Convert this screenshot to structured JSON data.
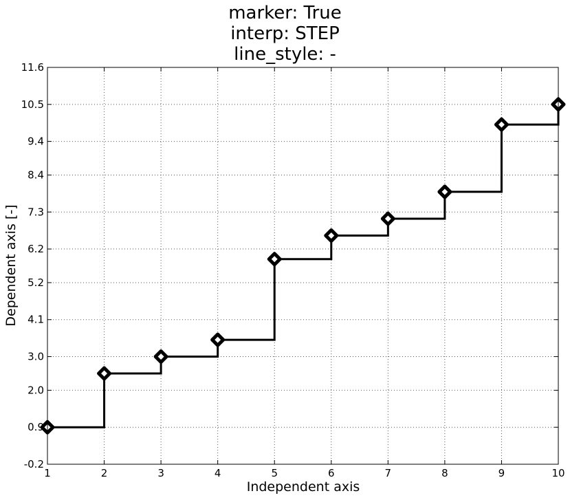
{
  "chart_data": {
    "type": "line",
    "title_lines": [
      "marker: True",
      "interp: STEP",
      "line_style: -"
    ],
    "xlabel": "Independent axis",
    "ylabel": "Dependent axis [-]",
    "xlim": [
      1,
      10
    ],
    "ylim": [
      -0.2,
      11.6
    ],
    "xticks": [
      "1",
      "2",
      "3",
      "4",
      "5",
      "6",
      "7",
      "8",
      "9",
      "10"
    ],
    "yticks": [
      "-0.2",
      "0.9",
      "2.0",
      "3.0",
      "4.1",
      "5.2",
      "6.2",
      "7.3",
      "8.4",
      "9.4",
      "10.5",
      "11.6"
    ],
    "grid": true,
    "interp": "step-post",
    "marker": "diamond",
    "line_color": "#000000",
    "marker_face": "#ffffff",
    "series": [
      {
        "x": [
          1,
          2,
          3,
          4,
          5,
          6,
          7,
          8,
          9,
          10
        ],
        "y": [
          0.9,
          2.5,
          3.0,
          3.5,
          5.9,
          6.6,
          7.1,
          7.9,
          9.9,
          10.5
        ]
      }
    ]
  }
}
